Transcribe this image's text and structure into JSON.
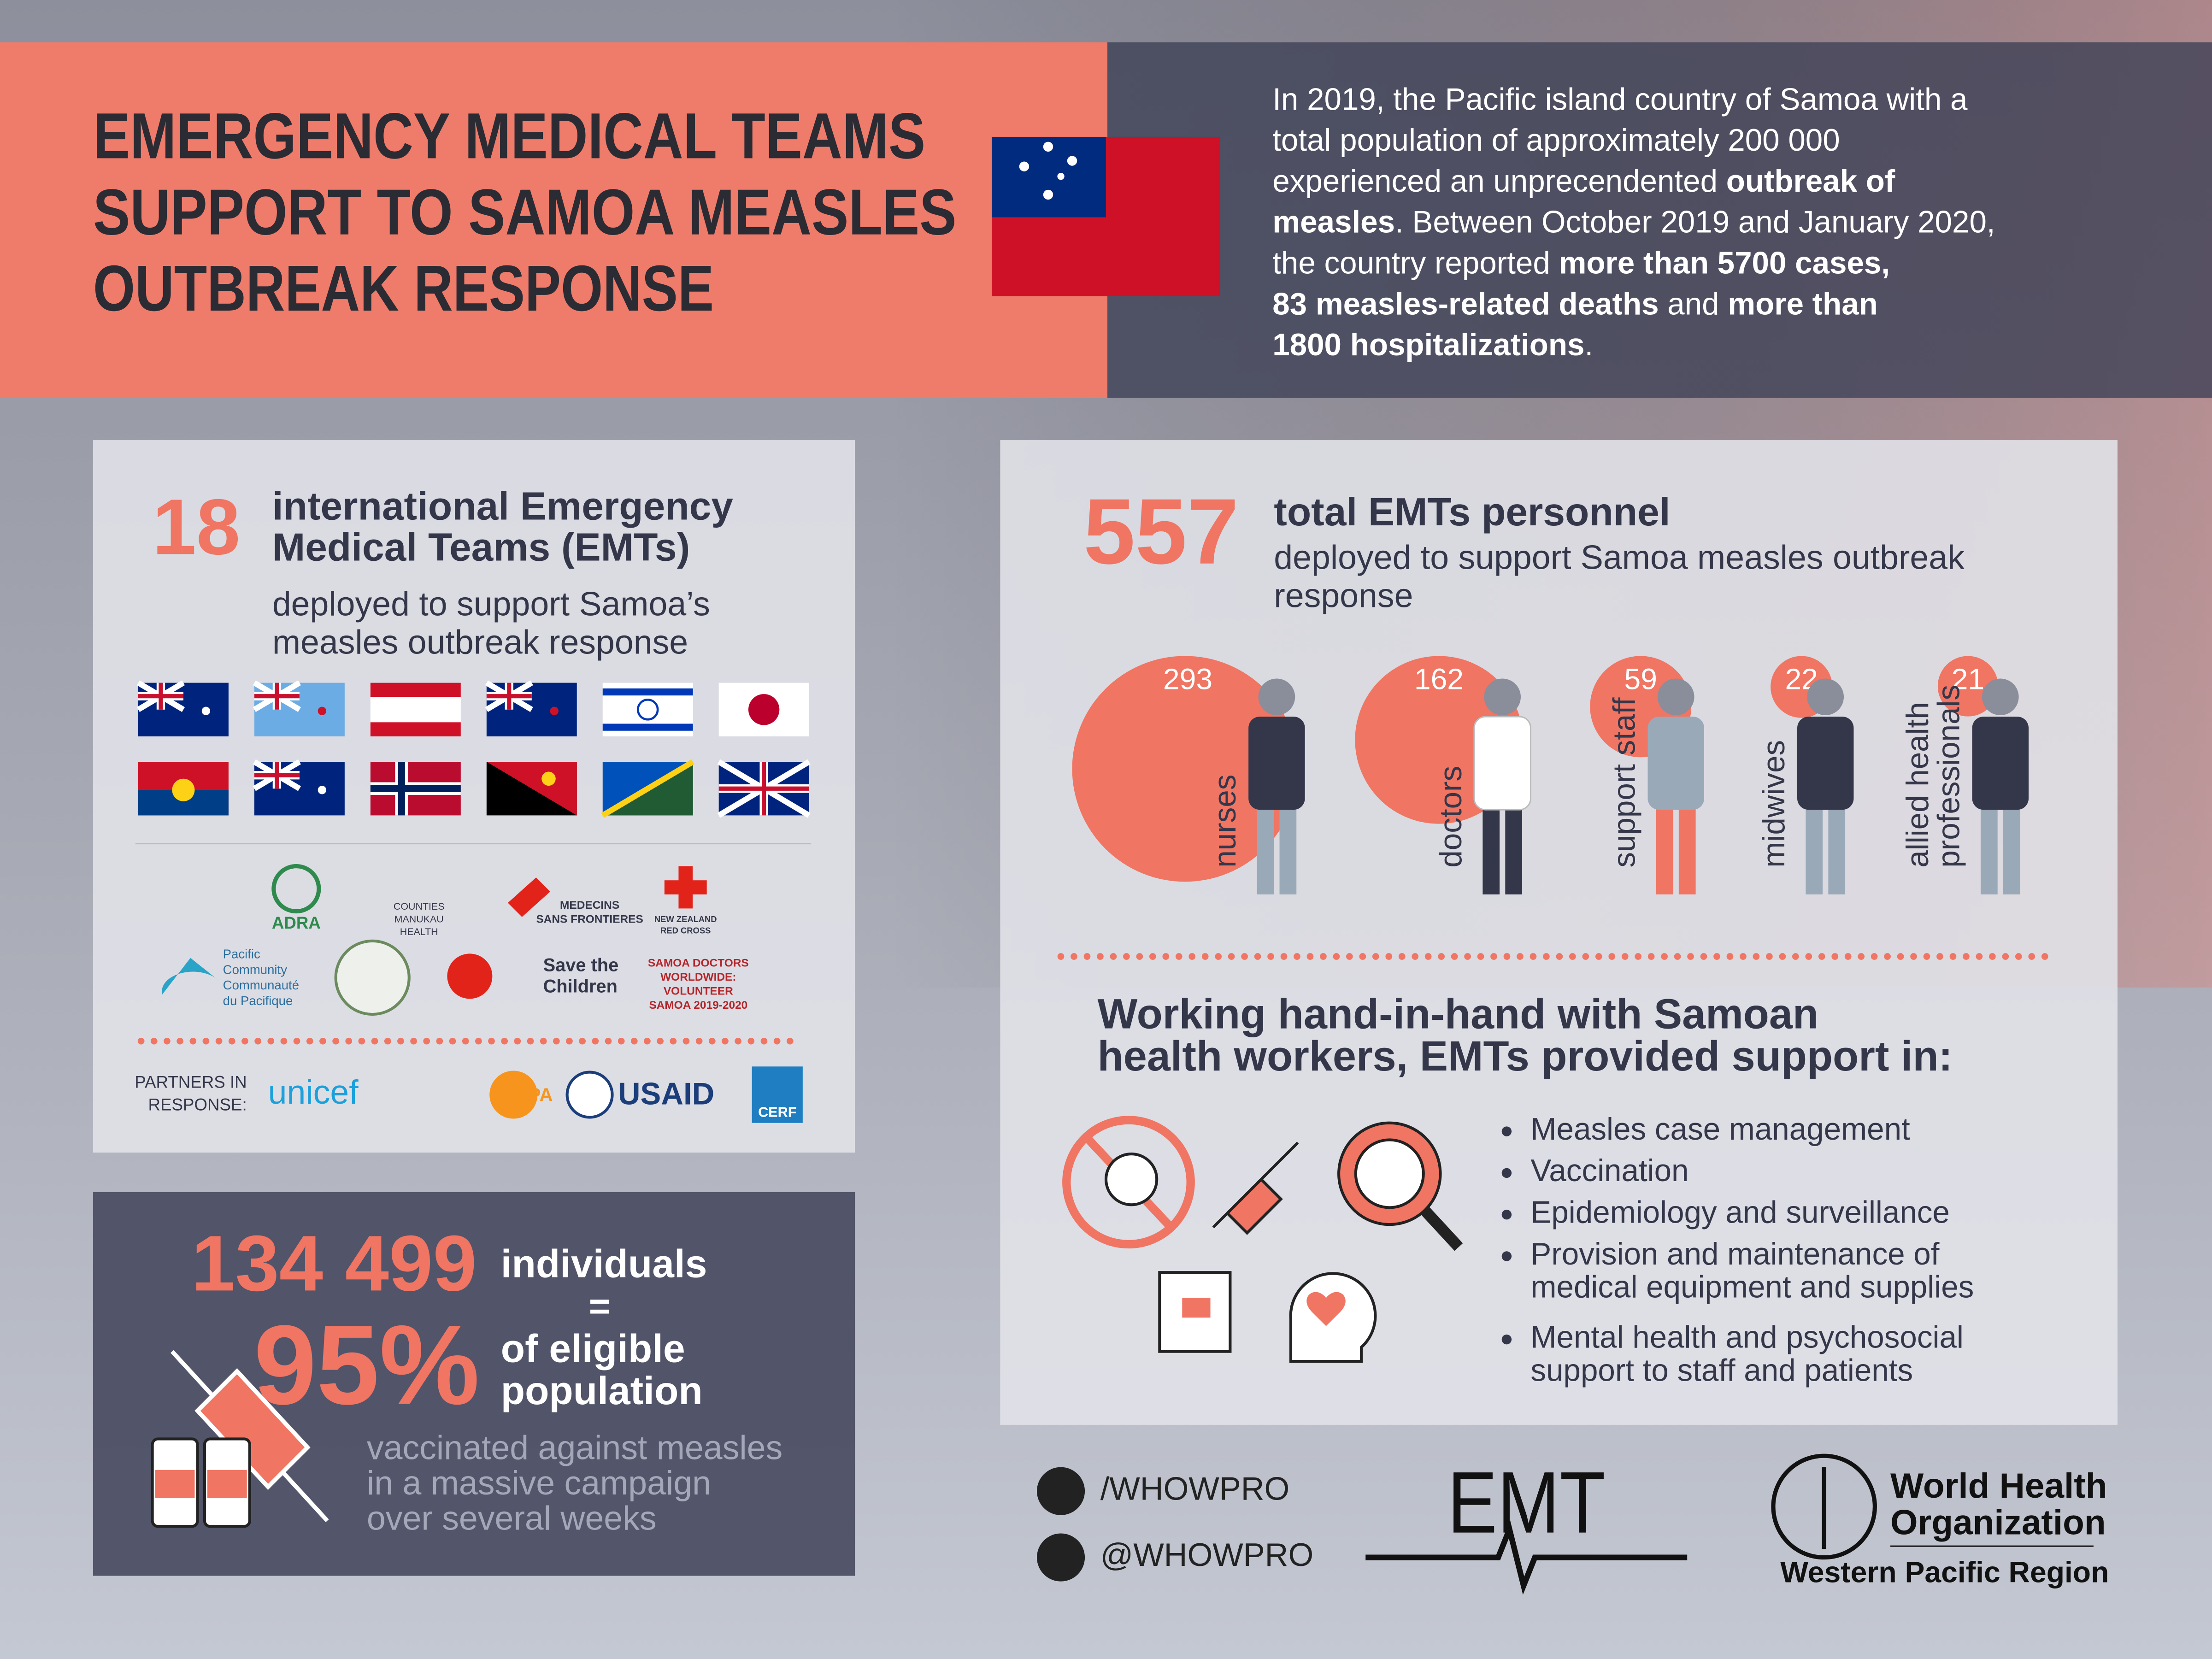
{
  "header": {
    "title_lines": [
      "EMERGENCY MEDICAL TEAMS",
      "SUPPORT TO SAMOA MEASLES",
      "OUTBREAK RESPONSE"
    ]
  },
  "intro_lines": [
    [
      {
        "text": "In 2019, the Pacific island country of Samoa with a",
        "bold": false
      }
    ],
    [
      {
        "text": "total population of approximately 200 000",
        "bold": false
      }
    ],
    [
      {
        "text": "experienced an unprecendented ",
        "bold": false
      },
      {
        "text": "outbreak of",
        "bold": true
      }
    ],
    [
      {
        "text": "measles",
        "bold": true
      },
      {
        "text": ". Between October 2019 and January 2020,",
        "bold": false
      }
    ],
    [
      {
        "text": "the country reported ",
        "bold": false
      },
      {
        "text": "more than 5700 cases,",
        "bold": true
      }
    ],
    [
      {
        "text": "83 measles-related deaths",
        "bold": true
      },
      {
        "text": " and ",
        "bold": false
      },
      {
        "text": "more than",
        "bold": true
      }
    ],
    [
      {
        "text": "1800 hospitalizations",
        "bold": true
      },
      {
        "text": ".",
        "bold": false
      }
    ]
  ],
  "teams": {
    "count": "18",
    "heading_lines": [
      "international Emergency",
      "Medical Teams (EMTs)"
    ],
    "sub_lines": [
      "deployed to support Samoa’s",
      "measles outbreak response"
    ]
  },
  "organizations": [
    [
      "ADRA"
    ],
    [
      "COUNTIES",
      "MANUKAU",
      "HEALTH"
    ],
    [
      "MEDECINS",
      "SANS FRONTIERES"
    ],
    [
      "NEW ZEALAND",
      "RED CROSS"
    ],
    [
      "Pacific",
      "Community",
      "Communauté",
      "du Pacifique"
    ],
    [
      "Save the",
      "Children"
    ],
    [
      "SAMOA DOCTORS",
      "WORLDWIDE:",
      "VOLUNTEER",
      "SAMOA 2019-2020"
    ]
  ],
  "partners": {
    "label_lines": [
      "PARTNERS IN",
      "RESPONSE:"
    ],
    "logos": [
      "unicef",
      "UNFPA",
      "USAID",
      "CERF"
    ]
  },
  "vaccination": {
    "individuals": "134 499",
    "individuals_label": "individuals",
    "equals": "=",
    "percent": "95%",
    "percent_label_lines": [
      "of eligible",
      "population"
    ],
    "note_lines": [
      "vaccinated against measles",
      "in a massive campaign",
      "over several weeks"
    ]
  },
  "personnel": {
    "total": "557",
    "heading": "total EMTs personnel",
    "sub_lines": [
      "deployed to support Samoa measles outbreak",
      "response"
    ],
    "roles": [
      {
        "count": 293,
        "label_lines": [
          "nurses"
        ]
      },
      {
        "count": 162,
        "label_lines": [
          "doctors"
        ]
      },
      {
        "count": 59,
        "label_lines": [
          "support staff"
        ]
      },
      {
        "count": 22,
        "label_lines": [
          "midwives"
        ]
      },
      {
        "count": 21,
        "label_lines": [
          "allied health",
          "professionals"
        ]
      }
    ]
  },
  "support": {
    "heading_lines": [
      "Working hand-in-hand with Samoan",
      "health workers, EMTs provided support in:"
    ],
    "items": [
      [
        "Measles case management"
      ],
      [
        "Vaccination"
      ],
      [
        "Epidemiology and surveillance"
      ],
      [
        "Provision and maintenance of",
        "medical equipment and supplies"
      ],
      [
        "Mental health and psychosocial",
        "support to staff and patients"
      ]
    ]
  },
  "footer": {
    "facebook": "/WHOWPRO",
    "twitter": "@WHOWPRO",
    "emt": "EMT",
    "who_lines": [
      "World Health",
      "Organization"
    ],
    "region": "Western Pacific Region"
  }
}
